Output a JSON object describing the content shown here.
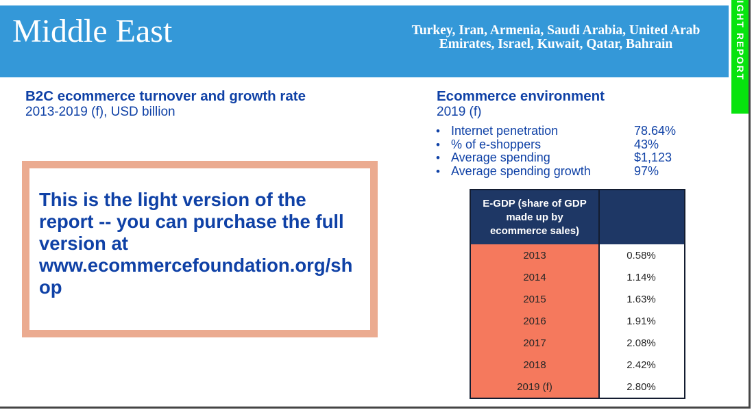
{
  "banner": {
    "title": "Middle East",
    "countries": "Turkey, Iran, Armenia, Saudi Arabia, United Arab Emirates, Israel, Kuwait, Qatar, Bahrain"
  },
  "ribbon": {
    "label": "LIGHT REPORT"
  },
  "left_section": {
    "heading": "B2C ecommerce turnover and growth rate",
    "subheading": "2013-2019 (f), USD billion",
    "notice_text": "This is the light version of the report -- you can purchase the full version at www.ecommercefoundation.org/shop"
  },
  "right_section": {
    "heading": "Ecommerce environment",
    "subheading": "2019 (f)",
    "stats": [
      {
        "label": "Internet penetration",
        "value": "78.64%"
      },
      {
        "label": "% of e-shoppers",
        "value": "43%"
      },
      {
        "label": "Average spending",
        "value": "$1,123"
      },
      {
        "label": "Average spending growth",
        "value": "97%"
      }
    ]
  },
  "chart_data": {
    "type": "table",
    "title": "E-GDP (share of GDP made up by ecommerce sales)",
    "categories": [
      "2013",
      "2014",
      "2015",
      "2016",
      "2017",
      "2018",
      "2019 (f)"
    ],
    "values": [
      "0.58%",
      "1.14%",
      "1.63%",
      "1.91%",
      "2.08%",
      "2.42%",
      "2.80%"
    ]
  },
  "colors": {
    "banner_blue": "#3498d8",
    "text_blue": "#0f41a6",
    "ribbon_green": "#07e30e",
    "table_header_navy": "#1e3765",
    "table_row_salmon": "#f5795d",
    "notice_border_salmon": "#ebab90",
    "page_frame_dark": "#454545"
  }
}
